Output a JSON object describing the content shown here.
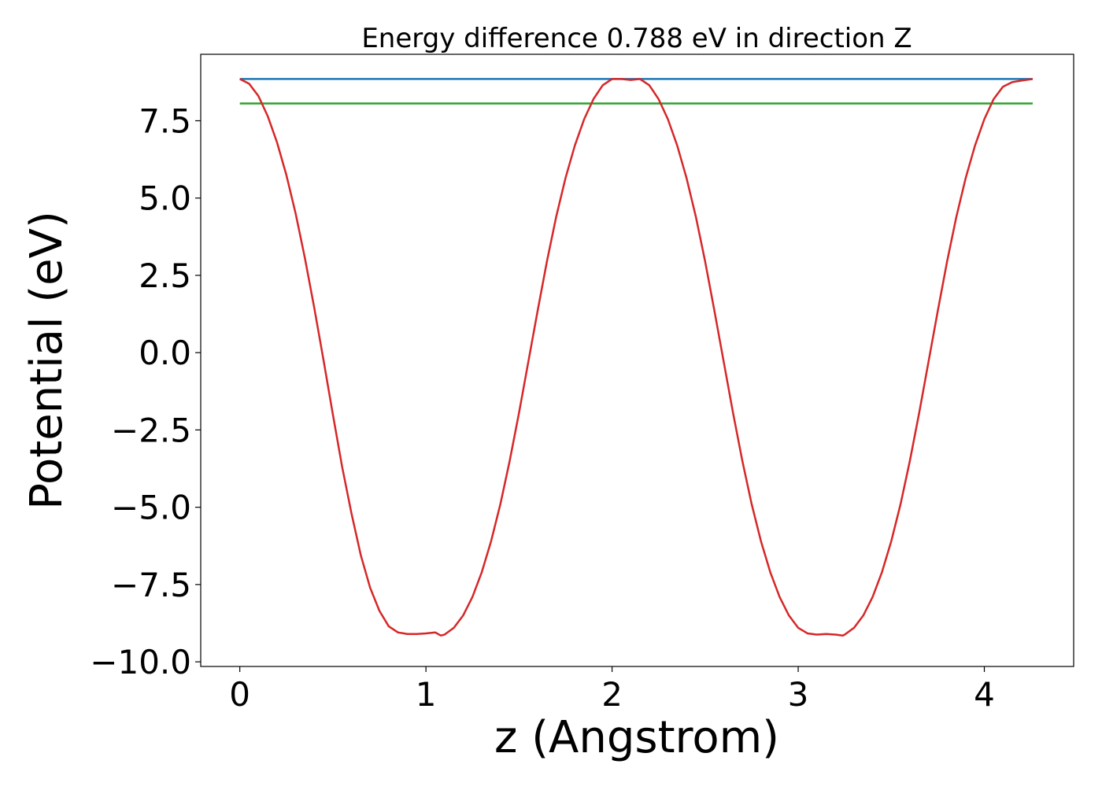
{
  "chart_data": {
    "type": "line",
    "title": "Energy difference 0.788 eV in direction Z",
    "xlabel": "z (Angstrom)",
    "ylabel": "Potential (eV)",
    "xlim": [
      -0.21,
      4.48
    ],
    "ylim": [
      -10.15,
      9.65
    ],
    "xticks": [
      0,
      1,
      2,
      3,
      4
    ],
    "xtick_labels": [
      "0",
      "1",
      "2",
      "3",
      "4"
    ],
    "yticks": [
      -10.0,
      -7.5,
      -5.0,
      -2.5,
      0.0,
      2.5,
      5.0,
      7.5
    ],
    "ytick_labels": [
      "−10.0",
      "−7.5",
      "−5.0",
      "−2.5",
      "0.0",
      "2.5",
      "5.0",
      "7.5"
    ],
    "grid": false,
    "legend": "none",
    "series": [
      {
        "color": "#1f77b4",
        "x": [
          0,
          4.26
        ],
        "y": [
          8.85,
          8.85
        ]
      },
      {
        "color": "#2ca02c",
        "x": [
          0,
          4.26
        ],
        "y": [
          8.06,
          8.06
        ]
      },
      {
        "color": "#d62728",
        "x": [
          0,
          0.05,
          0.1,
          0.15,
          0.2,
          0.25,
          0.3,
          0.35,
          0.4,
          0.45,
          0.5,
          0.55,
          0.6,
          0.65,
          0.7,
          0.75,
          0.8,
          0.85,
          0.9,
          0.95,
          1.0,
          1.05,
          1.08,
          1.1,
          1.15,
          1.2,
          1.25,
          1.3,
          1.35,
          1.4,
          1.45,
          1.5,
          1.55,
          1.6,
          1.65,
          1.7,
          1.75,
          1.8,
          1.85,
          1.9,
          1.95,
          2.0,
          2.05,
          2.1,
          2.15,
          2.2,
          2.25,
          2.3,
          2.35,
          2.4,
          2.45,
          2.5,
          2.55,
          2.6,
          2.65,
          2.7,
          2.75,
          2.8,
          2.85,
          2.9,
          2.95,
          3.0,
          3.05,
          3.1,
          3.15,
          3.2,
          3.24,
          3.25,
          3.3,
          3.35,
          3.4,
          3.45,
          3.5,
          3.55,
          3.6,
          3.65,
          3.7,
          3.75,
          3.8,
          3.85,
          3.9,
          3.95,
          4.0,
          4.05,
          4.1,
          4.15,
          4.2,
          4.26
        ],
        "y": [
          8.85,
          8.7,
          8.3,
          7.65,
          6.8,
          5.75,
          4.5,
          3.05,
          1.45,
          -0.25,
          -2.0,
          -3.7,
          -5.2,
          -6.55,
          -7.6,
          -8.35,
          -8.85,
          -9.05,
          -9.1,
          -9.1,
          -9.08,
          -9.05,
          -9.15,
          -9.12,
          -8.9,
          -8.5,
          -7.9,
          -7.1,
          -6.1,
          -4.9,
          -3.5,
          -1.95,
          -0.3,
          1.35,
          2.95,
          4.4,
          5.65,
          6.7,
          7.55,
          8.2,
          8.65,
          8.85,
          8.85,
          8.82,
          8.85,
          8.65,
          8.2,
          7.55,
          6.7,
          5.65,
          4.4,
          2.95,
          1.35,
          -0.3,
          -1.95,
          -3.5,
          -4.9,
          -6.1,
          -7.1,
          -7.9,
          -8.5,
          -8.9,
          -9.08,
          -9.12,
          -9.1,
          -9.12,
          -9.15,
          -9.12,
          -8.9,
          -8.5,
          -7.9,
          -7.1,
          -6.1,
          -4.9,
          -3.5,
          -1.95,
          -0.3,
          1.35,
          2.95,
          4.4,
          5.65,
          6.7,
          7.55,
          8.2,
          8.6,
          8.75,
          8.8,
          8.85
        ]
      }
    ]
  }
}
